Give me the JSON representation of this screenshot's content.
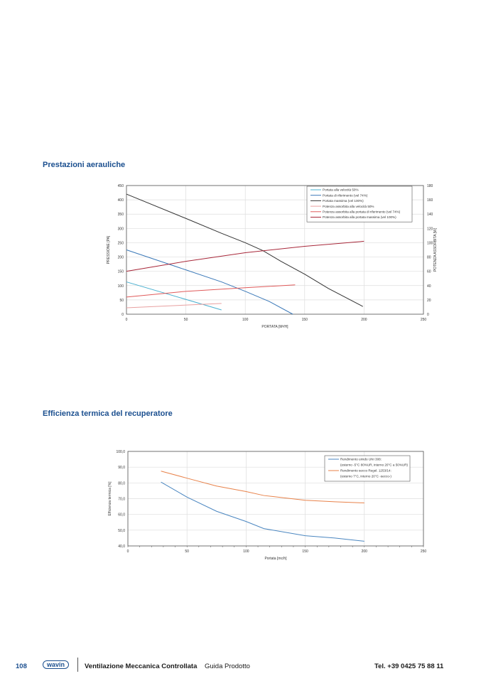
{
  "sections": {
    "aeraulic_title": "Prestazioni aerauliche",
    "thermal_title": "Efficienza termica del recuperatore"
  },
  "footer": {
    "page": "108",
    "logo": "wavin",
    "title": "Ventilazione Meccanica Controllata",
    "subtitle": "Guida Prodotto",
    "phone": "Tel. +39 0425 75 88 11"
  },
  "chart_data": [
    {
      "type": "line",
      "xlabel": "PORTATA [M³/H]",
      "ylabel": "PRESSIONE [PA]",
      "y2label": "POTENZA ASSORBITA [W]",
      "xlim": [
        0,
        250
      ],
      "ylim": [
        0,
        450
      ],
      "y2lim": [
        0,
        180
      ],
      "xticks": [
        "0",
        "50",
        "100",
        "150",
        "200",
        "250"
      ],
      "yticks": [
        "0",
        "50",
        "100",
        "150",
        "200",
        "250",
        "300",
        "350",
        "400",
        "450"
      ],
      "y2ticks": [
        "0",
        "20",
        "40",
        "60",
        "80",
        "100",
        "120",
        "140",
        "160",
        "180"
      ],
      "grid": true,
      "legend": "top-right",
      "series": [
        {
          "name": "Portata alla velocità 50%",
          "axis": "left",
          "color": "#4ab0d0",
          "x": [
            0,
            80
          ],
          "y": [
            113,
            15
          ]
        },
        {
          "name": "Portata di riferimento (vel 74%)",
          "axis": "left",
          "color": "#3a78b8",
          "x": [
            0,
            50,
            80,
            100,
            120,
            140
          ],
          "y": [
            225,
            155,
            113,
            80,
            45,
            0
          ]
        },
        {
          "name": "Portata massima (vel 100%)",
          "axis": "left",
          "color": "#333333",
          "x": [
            0,
            50,
            80,
            100,
            115,
            130,
            150,
            170,
            199
          ],
          "y": [
            420,
            335,
            283,
            250,
            222,
            185,
            140,
            90,
            27
          ]
        },
        {
          "name": "Potenza assorbita alla velocità 50%",
          "axis": "right",
          "color": "#e8a0a0",
          "x": [
            0,
            80
          ],
          "y": [
            9,
            15
          ]
        },
        {
          "name": "Potenza assorbita alla portata di riferimento (vel 74%)",
          "axis": "right",
          "color": "#e05a5a",
          "x": [
            0,
            50,
            100,
            142
          ],
          "y": [
            24,
            32,
            37,
            41
          ]
        },
        {
          "name": "Potenza assorbita alla portata massima (vel 100%)",
          "axis": "right",
          "color": "#a8283a",
          "x": [
            0,
            50,
            100,
            150,
            200
          ],
          "y": [
            60,
            74,
            86,
            95,
            102
          ]
        }
      ]
    },
    {
      "type": "line",
      "xlabel": "Portata [mc/h]",
      "ylabel": "Efficienza termica [%]",
      "xlim": [
        0,
        250
      ],
      "ylim": [
        40,
        100
      ],
      "xticks": [
        "0",
        "50",
        "100",
        "150",
        "200",
        "250"
      ],
      "yticks": [
        "40,0",
        "50,0",
        "60,0",
        "70,0",
        "80,0",
        "90,0",
        "100,0"
      ],
      "grid": true,
      "legend": "top-right",
      "series": [
        {
          "name": "Rendimento umido UNI 308:",
          "name2": "(esterno -5°C 80%UR, interno 20°C a 50%UR)",
          "color": "#4a86c0",
          "x": [
            28,
            50,
            75,
            100,
            115,
            150,
            175,
            200
          ],
          "y": [
            80.5,
            71,
            62,
            55.5,
            51,
            46.5,
            45,
            43
          ]
        },
        {
          "name": "Rendimento secco Regol. 1253/14:",
          "name2": "(esterno 7°C, interno 20°C -secco-)",
          "color": "#e8824a",
          "x": [
            28,
            50,
            75,
            100,
            115,
            150,
            175,
            200
          ],
          "y": [
            87.5,
            83,
            78,
            74.5,
            72,
            69,
            68,
            67.3
          ]
        }
      ]
    }
  ]
}
